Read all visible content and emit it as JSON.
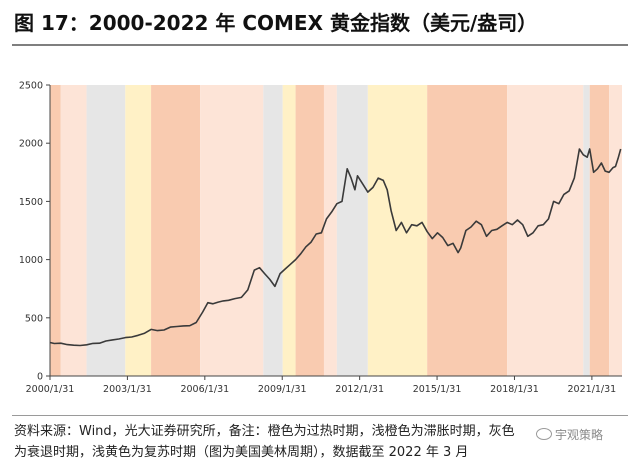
{
  "title": "图 17：2000-2022 年 COMEX 黄金指数（美元/盎司）",
  "note_line1": "资料来源：Wind，光大证券研究所，备注：橙色为过热时期，浅橙色为滞胀时期，灰色",
  "note_line2": "为衰退时期，浅黄色为复苏时期（图为美国美林周期），数据截至 2022 年 3 月",
  "watermark": "宇观策略",
  "colors": {
    "overheat": "#f9cbb0",
    "stagflation": "#fde4d7",
    "recession": "#e6e6e6",
    "recovery": "#fff1c6",
    "line": "#3a3a3a",
    "axis": "#444444"
  },
  "chart_data": {
    "type": "line",
    "title": "",
    "xlabel": "",
    "ylabel": "",
    "ylim": [
      0,
      2500
    ],
    "yticks": [
      0,
      500,
      1000,
      1500,
      2000,
      2500
    ],
    "xlim": [
      2000.083,
      2022.25
    ],
    "xticks": [
      {
        "value": 2000.083,
        "label": "2000/1/31"
      },
      {
        "value": 2003.083,
        "label": "2003/1/31"
      },
      {
        "value": 2006.083,
        "label": "2006/1/31"
      },
      {
        "value": 2009.083,
        "label": "2009/1/31"
      },
      {
        "value": 2012.083,
        "label": "2012/1/31"
      },
      {
        "value": 2015.083,
        "label": "2015/1/31"
      },
      {
        "value": 2018.083,
        "label": "2018/1/31"
      },
      {
        "value": 2021.083,
        "label": "2021/1/31"
      }
    ],
    "grid": false,
    "legend": "none",
    "regimes": [
      {
        "start": 2000.083,
        "end": 2000.5,
        "phase": "overheat"
      },
      {
        "start": 2000.5,
        "end": 2001.5,
        "phase": "stagflation"
      },
      {
        "start": 2001.5,
        "end": 2003.0,
        "phase": "recession"
      },
      {
        "start": 2003.0,
        "end": 2004.0,
        "phase": "recovery"
      },
      {
        "start": 2004.0,
        "end": 2005.9,
        "phase": "overheat"
      },
      {
        "start": 2005.9,
        "end": 2008.35,
        "phase": "stagflation"
      },
      {
        "start": 2008.35,
        "end": 2009.1,
        "phase": "recession"
      },
      {
        "start": 2009.1,
        "end": 2009.6,
        "phase": "recovery"
      },
      {
        "start": 2009.6,
        "end": 2010.7,
        "phase": "overheat"
      },
      {
        "start": 2010.7,
        "end": 2011.2,
        "phase": "stagflation"
      },
      {
        "start": 2011.2,
        "end": 2012.4,
        "phase": "recession"
      },
      {
        "start": 2012.4,
        "end": 2014.7,
        "phase": "recovery"
      },
      {
        "start": 2014.7,
        "end": 2017.8,
        "phase": "overheat"
      },
      {
        "start": 2017.8,
        "end": 2020.75,
        "phase": "stagflation"
      },
      {
        "start": 2020.75,
        "end": 2021.0,
        "phase": "recession"
      },
      {
        "start": 2021.0,
        "end": 2021.75,
        "phase": "overheat"
      },
      {
        "start": 2021.75,
        "end": 2022.25,
        "phase": "stagflation"
      }
    ],
    "series": [
      {
        "x": [
          2000.0,
          2000.25,
          2000.5,
          2000.75,
          2001.0,
          2001.25,
          2001.5,
          2001.75,
          2002.0,
          2002.25,
          2002.5,
          2002.75,
          2003.0,
          2003.25,
          2003.5,
          2003.75,
          2004.0,
          2004.25,
          2004.5,
          2004.75,
          2005.0,
          2005.25,
          2005.5,
          2005.75,
          2006.0,
          2006.2,
          2006.4,
          2006.6,
          2006.8,
          2007.0,
          2007.25,
          2007.5,
          2007.75,
          2008.0,
          2008.2,
          2008.4,
          2008.6,
          2008.8,
          2009.0,
          2009.2,
          2009.4,
          2009.6,
          2009.8,
          2010.0,
          2010.2,
          2010.4,
          2010.6,
          2010.8,
          2011.0,
          2011.2,
          2011.4,
          2011.6,
          2011.75,
          2011.9,
          2012.0,
          2012.2,
          2012.4,
          2012.6,
          2012.8,
          2013.0,
          2013.15,
          2013.3,
          2013.5,
          2013.7,
          2013.9,
          2014.1,
          2014.3,
          2014.5,
          2014.7,
          2014.9,
          2015.1,
          2015.3,
          2015.5,
          2015.7,
          2015.9,
          2016.0,
          2016.2,
          2016.4,
          2016.6,
          2016.8,
          2017.0,
          2017.2,
          2017.4,
          2017.6,
          2017.8,
          2018.0,
          2018.2,
          2018.4,
          2018.6,
          2018.8,
          2019.0,
          2019.2,
          2019.4,
          2019.6,
          2019.8,
          2020.0,
          2020.2,
          2020.4,
          2020.6,
          2020.75,
          2020.9,
          2021.0,
          2021.15,
          2021.3,
          2021.45,
          2021.6,
          2021.75,
          2021.9,
          2022.0,
          2022.1,
          2022.2
        ],
        "y": [
          288,
          279,
          282,
          270,
          265,
          262,
          268,
          280,
          282,
          301,
          310,
          318,
          330,
          335,
          350,
          368,
          400,
          390,
          395,
          420,
          425,
          430,
          432,
          460,
          550,
          630,
          620,
          635,
          645,
          650,
          665,
          675,
          740,
          910,
          930,
          880,
          830,
          770,
          880,
          920,
          960,
          1000,
          1050,
          1110,
          1150,
          1220,
          1230,
          1350,
          1410,
          1480,
          1500,
          1780,
          1700,
          1600,
          1720,
          1650,
          1580,
          1620,
          1700,
          1680,
          1600,
          1420,
          1250,
          1320,
          1230,
          1300,
          1290,
          1320,
          1240,
          1180,
          1230,
          1190,
          1120,
          1140,
          1060,
          1100,
          1250,
          1280,
          1330,
          1300,
          1200,
          1250,
          1260,
          1290,
          1320,
          1300,
          1340,
          1300,
          1200,
          1230,
          1290,
          1300,
          1350,
          1500,
          1480,
          1560,
          1590,
          1700,
          1950,
          1900,
          1880,
          1950,
          1750,
          1780,
          1830,
          1760,
          1750,
          1790,
          1800,
          1870,
          1950
        ]
      }
    ]
  }
}
